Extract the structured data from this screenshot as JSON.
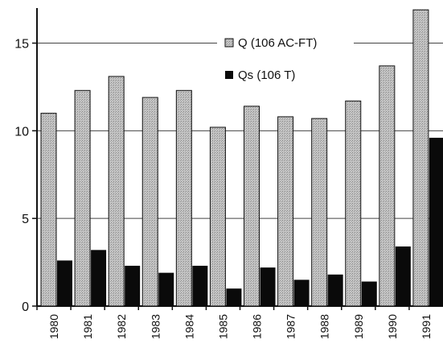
{
  "chart_data": {
    "type": "bar",
    "title": "",
    "xlabel": "",
    "ylabel": "",
    "categories": [
      "1980",
      "1981",
      "1982",
      "1983",
      "1984",
      "1985",
      "1986",
      "1987",
      "1988",
      "1989",
      "1990",
      "1991"
    ],
    "series": [
      {
        "name": "Q (106 AC-FT)",
        "values": [
          11.0,
          12.3,
          13.1,
          11.9,
          12.3,
          10.2,
          11.4,
          10.8,
          10.7,
          11.7,
          13.7,
          16.9
        ],
        "color": "#b0b0b0"
      },
      {
        "name": "Qs (106 T)",
        "values": [
          2.6,
          3.2,
          2.3,
          1.9,
          2.3,
          1.0,
          2.2,
          1.5,
          1.8,
          1.4,
          3.4,
          9.6
        ],
        "color": "#0a0a0a"
      }
    ],
    "yticks": [
      "0",
      "5",
      "10",
      "15"
    ],
    "ylim": [
      0,
      17
    ],
    "grid": true,
    "legend_position": "top-right"
  }
}
